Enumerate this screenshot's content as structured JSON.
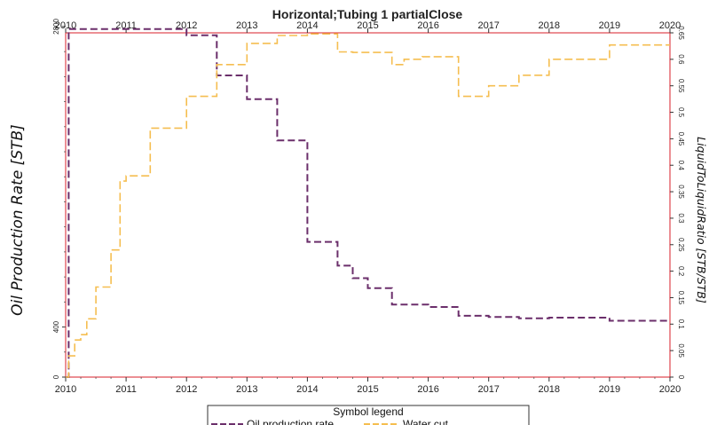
{
  "chart_data": {
    "type": "line",
    "title": "Horizontal;Tubing 1 partialClose",
    "ylabel_left": "Oil Production Rate [STB]",
    "ylabel_right": "LiquidToLiquidRatio [STB/STB]",
    "xlim": [
      2010,
      2020
    ],
    "x_ticks": [
      "2010",
      "2011",
      "2012",
      "2013",
      "2014",
      "2015",
      "2016",
      "2017",
      "2018",
      "2019",
      "2020"
    ],
    "ylim_left": [
      0,
      2750
    ],
    "y_ticks_left": [
      "0",
      "400",
      "2800"
    ],
    "ylim_right": [
      0,
      0.65
    ],
    "y_ticks_right": [
      "0",
      "0.05",
      "0.1",
      "0.15",
      "0.2",
      "0.25",
      "0.3",
      "0.35",
      "0.4",
      "0.45",
      "0.5",
      "0.55",
      "0.6",
      "0.65"
    ],
    "legend": {
      "title": "Symbol legend",
      "position": "bottom-center"
    },
    "series": [
      {
        "name": "Oil production rate",
        "axis": "left",
        "color": "#6b2f6b",
        "step": true,
        "x": [
          2010.0,
          2010.05,
          2012.0,
          2012.5,
          2013.0,
          2013.5,
          2014.0,
          2014.5,
          2014.75,
          2015.0,
          2015.4,
          2016.0,
          2016.5,
          2017.0,
          2017.5,
          2018.0,
          2019.0,
          2020.0
        ],
        "values": [
          0,
          2780,
          2730,
          2410,
          2220,
          1890,
          1080,
          890,
          790,
          710,
          580,
          560,
          490,
          480,
          470,
          475,
          450,
          450
        ]
      },
      {
        "name": "Water cut",
        "axis": "right",
        "color": "#f5be50",
        "step": true,
        "x": [
          2010.0,
          2010.05,
          2010.15,
          2010.25,
          2010.35,
          2010.5,
          2010.75,
          2010.9,
          2011.0,
          2011.4,
          2011.5,
          2012.0,
          2012.5,
          2013.0,
          2013.5,
          2014.0,
          2014.5,
          2014.75,
          2015.4,
          2015.6,
          2015.9,
          2016.5,
          2016.9,
          2017.0,
          2017.5,
          2018.0,
          2019.0,
          2020.0
        ],
        "values": [
          0.0,
          0.04,
          0.07,
          0.08,
          0.11,
          0.17,
          0.24,
          0.37,
          0.38,
          0.47,
          0.47,
          0.53,
          0.59,
          0.63,
          0.645,
          0.648,
          0.614,
          0.613,
          0.59,
          0.6,
          0.605,
          0.53,
          0.53,
          0.55,
          0.57,
          0.6,
          0.627,
          0.627
        ]
      }
    ]
  }
}
